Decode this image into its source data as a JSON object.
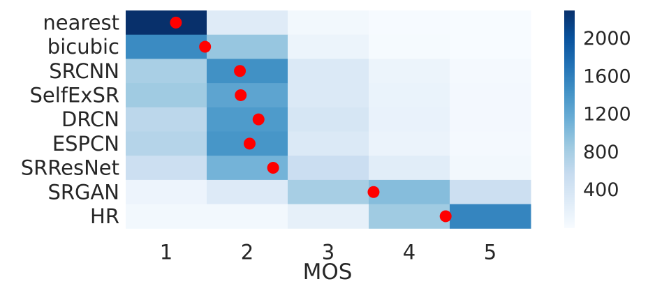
{
  "chart_data": {
    "type": "heatmap",
    "title": "",
    "xlabel": "MOS",
    "ylabel": "",
    "x_categories": [
      "1",
      "2",
      "3",
      "4",
      "5"
    ],
    "y_categories": [
      "nearest",
      "bicubic",
      "SRCNN",
      "SelfExSR",
      "DRCN",
      "ESPCN",
      "SRResNet",
      "SRGAN",
      "HR"
    ],
    "values": [
      [
        2350,
        280,
        60,
        10,
        0
      ],
      [
        1500,
        900,
        130,
        20,
        0
      ],
      [
        780,
        1450,
        320,
        130,
        40
      ],
      [
        850,
        1250,
        320,
        150,
        50
      ],
      [
        650,
        1350,
        380,
        160,
        50
      ],
      [
        700,
        1400,
        320,
        140,
        40
      ],
      [
        500,
        1100,
        520,
        250,
        60
      ],
      [
        120,
        300,
        800,
        1000,
        500
      ],
      [
        60,
        60,
        200,
        850,
        1550
      ]
    ],
    "mean_markers": [
      1.12,
      1.48,
      1.91,
      1.92,
      2.14,
      2.03,
      2.32,
      3.56,
      4.45
    ],
    "marker_color": "#ff0000",
    "colorbar": {
      "ticks": [
        "400",
        "800",
        "1200",
        "1600",
        "2000"
      ],
      "tick_values": [
        400,
        800,
        1200,
        1600,
        2000
      ],
      "min": 0,
      "max": 2300
    },
    "colormap": [
      "#f7fbff",
      "#deebf7",
      "#c6dbef",
      "#9ecae1",
      "#6baed6",
      "#4292c6",
      "#2171b5",
      "#08519c",
      "#08306b"
    ],
    "grid": false
  }
}
